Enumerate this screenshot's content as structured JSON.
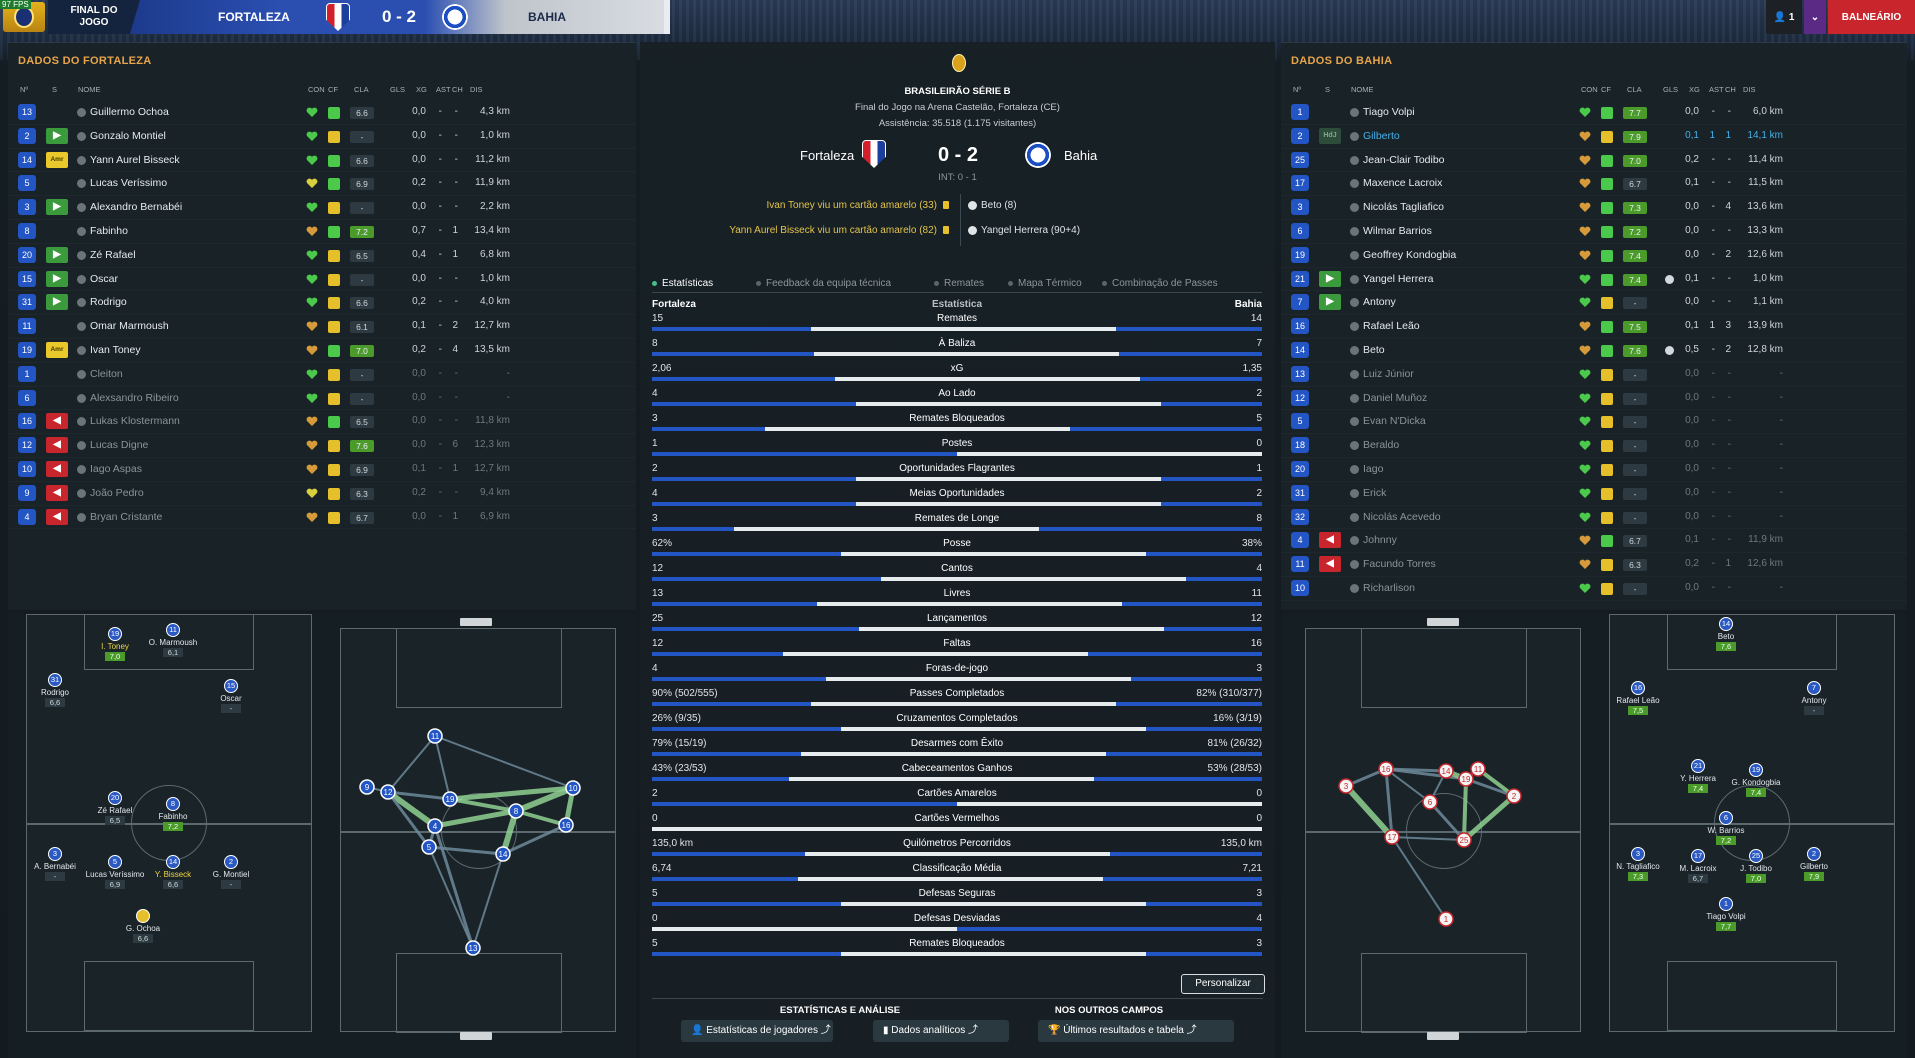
{
  "topbar": {
    "fps": "97 FPS",
    "stage": "FINAL DO\nJOGO",
    "home_team": "FORTALEZA",
    "score": "0 - 2",
    "away_team": "BAHIA",
    "notif_count": "1",
    "balneario": "BALNEÁRIO"
  },
  "home_panel": {
    "title": "DADOS DO FORTALEZA",
    "columns": [
      "Nº",
      "S",
      "NOME",
      "CON",
      "CF",
      "CLA",
      "GLS",
      "XG",
      "AST",
      "CH",
      "DIS"
    ],
    "players": [
      {
        "n": "13",
        "s": "",
        "name": "Guillermo Ochoa",
        "con": "g",
        "cf": "up",
        "cla": "6.6",
        "clag": false,
        "gls": "",
        "xg": "0,0",
        "ast": "-",
        "ch": "-",
        "dis": "4,3 km",
        "dim": false
      },
      {
        "n": "2",
        "s": "in",
        "name": "Gonzalo Montiel",
        "con": "g",
        "cf": "flat",
        "cla": "-",
        "clag": false,
        "gls": "",
        "xg": "0,0",
        "ast": "-",
        "ch": "-",
        "dis": "1,0 km",
        "dim": false
      },
      {
        "n": "14",
        "s": "amr",
        "name": "Yann Aurel Bisseck",
        "con": "g",
        "cf": "up",
        "cla": "6.6",
        "clag": false,
        "gls": "",
        "xg": "0,0",
        "ast": "-",
        "ch": "-",
        "dis": "11,2 km",
        "dim": false
      },
      {
        "n": "5",
        "s": "",
        "name": "Lucas Veríssimo",
        "con": "y",
        "cf": "up",
        "cla": "6.9",
        "clag": false,
        "gls": "",
        "xg": "0,2",
        "ast": "-",
        "ch": "-",
        "dis": "11,9 km",
        "dim": false
      },
      {
        "n": "3",
        "s": "in",
        "name": "Alexandro Bernabéi",
        "con": "g",
        "cf": "flat",
        "cla": "-",
        "clag": false,
        "gls": "",
        "xg": "0,0",
        "ast": "-",
        "ch": "-",
        "dis": "2,2 km",
        "dim": false
      },
      {
        "n": "8",
        "s": "",
        "name": "Fabinho",
        "con": "o",
        "cf": "up",
        "cla": "7.2",
        "clag": true,
        "gls": "",
        "xg": "0,7",
        "ast": "-",
        "ch": "1",
        "dis": "13,4 km",
        "dim": false
      },
      {
        "n": "20",
        "s": "in",
        "name": "Zé Rafael",
        "con": "g",
        "cf": "flat",
        "cla": "6.5",
        "clag": false,
        "gls": "",
        "xg": "0,4",
        "ast": "-",
        "ch": "1",
        "dis": "6,8 km",
        "dim": false
      },
      {
        "n": "15",
        "s": "in",
        "name": "Oscar",
        "con": "g",
        "cf": "flat",
        "cla": "-",
        "clag": false,
        "gls": "",
        "xg": "0,0",
        "ast": "-",
        "ch": "-",
        "dis": "1,0 km",
        "dim": false
      },
      {
        "n": "31",
        "s": "in",
        "name": "Rodrigo",
        "con": "g",
        "cf": "flat",
        "cla": "6.6",
        "clag": false,
        "gls": "",
        "xg": "0,2",
        "ast": "-",
        "ch": "-",
        "dis": "4,0 km",
        "dim": false
      },
      {
        "n": "11",
        "s": "",
        "name": "Omar Marmoush",
        "con": "o",
        "cf": "flat",
        "cla": "6.1",
        "clag": false,
        "gls": "",
        "xg": "0,1",
        "ast": "-",
        "ch": "2",
        "dis": "12,7 km",
        "dim": false
      },
      {
        "n": "19",
        "s": "amr",
        "name": "Ivan Toney",
        "con": "o",
        "cf": "up",
        "cla": "7.0",
        "clag": true,
        "gls": "",
        "xg": "0,2",
        "ast": "-",
        "ch": "4",
        "dis": "13,5 km",
        "dim": false
      },
      {
        "n": "1",
        "s": "",
        "name": "Cleiton",
        "con": "g",
        "cf": "flat",
        "cla": "-",
        "clag": false,
        "gls": "",
        "xg": "0,0",
        "ast": "-",
        "ch": "-",
        "dis": "-",
        "dim": true
      },
      {
        "n": "6",
        "s": "",
        "name": "Alexsandro Ribeiro",
        "con": "g",
        "cf": "flat",
        "cla": "-",
        "clag": false,
        "gls": "",
        "xg": "0,0",
        "ast": "-",
        "ch": "-",
        "dis": "-",
        "dim": true
      },
      {
        "n": "16",
        "s": "out",
        "name": "Lukas Klostermann",
        "con": "o",
        "cf": "up",
        "cla": "6.5",
        "clag": false,
        "gls": "",
        "xg": "0,0",
        "ast": "-",
        "ch": "-",
        "dis": "11,8 km",
        "dim": true
      },
      {
        "n": "12",
        "s": "out",
        "name": "Lucas Digne",
        "con": "o",
        "cf": "flat",
        "cla": "7.6",
        "clag": true,
        "gls": "",
        "xg": "0,0",
        "ast": "-",
        "ch": "6",
        "dis": "12,3 km",
        "dim": true
      },
      {
        "n": "10",
        "s": "out",
        "name": "Iago Aspas",
        "con": "o",
        "cf": "flat",
        "cla": "6.9",
        "clag": false,
        "gls": "",
        "xg": "0,1",
        "ast": "-",
        "ch": "1",
        "dis": "12,7 km",
        "dim": true
      },
      {
        "n": "9",
        "s": "out",
        "name": "João Pedro",
        "con": "y",
        "cf": "flat",
        "cla": "6.3",
        "clag": false,
        "gls": "",
        "xg": "0,2",
        "ast": "-",
        "ch": "-",
        "dis": "9,4 km",
        "dim": true
      },
      {
        "n": "4",
        "s": "out",
        "name": "Bryan Cristante",
        "con": "o",
        "cf": "flat",
        "cla": "6.7",
        "clag": false,
        "gls": "",
        "xg": "0,0",
        "ast": "-",
        "ch": "1",
        "dis": "6,9 km",
        "dim": true
      }
    ]
  },
  "away_panel": {
    "title": "DADOS DO BAHIA",
    "columns": [
      "Nº",
      "S",
      "NOME",
      "CON",
      "CF",
      "CLA",
      "GLS",
      "XG",
      "AST",
      "CH",
      "DIS"
    ],
    "players": [
      {
        "n": "1",
        "s": "",
        "name": "Tiago Volpi",
        "con": "g",
        "cf": "up",
        "cla": "7.7",
        "clag": true,
        "gls": "",
        "xg": "0,0",
        "ast": "-",
        "ch": "-",
        "dis": "6,0 km",
        "dim": false,
        "hl": false
      },
      {
        "n": "2",
        "s": "hd",
        "name": "Gilberto",
        "con": "o",
        "cf": "flat",
        "cla": "7.9",
        "clag": true,
        "gls": "",
        "xg": "0,1",
        "ast": "1",
        "ch": "1",
        "dis": "14,1 km",
        "dim": false,
        "hl": true
      },
      {
        "n": "25",
        "s": "",
        "name": "Jean-Clair Todibo",
        "con": "o",
        "cf": "up",
        "cla": "7.0",
        "clag": true,
        "gls": "",
        "xg": "0,2",
        "ast": "-",
        "ch": "-",
        "dis": "11,4 km",
        "dim": false,
        "hl": false
      },
      {
        "n": "17",
        "s": "",
        "name": "Maxence Lacroix",
        "con": "o",
        "cf": "up",
        "cla": "6.7",
        "clag": false,
        "gls": "",
        "xg": "0,1",
        "ast": "-",
        "ch": "-",
        "dis": "11,5 km",
        "dim": false,
        "hl": false
      },
      {
        "n": "3",
        "s": "",
        "name": "Nicolás Tagliafico",
        "con": "o",
        "cf": "up",
        "cla": "7.3",
        "clag": true,
        "gls": "",
        "xg": "0,0",
        "ast": "-",
        "ch": "4",
        "dis": "13,6 km",
        "dim": false,
        "hl": false
      },
      {
        "n": "6",
        "s": "",
        "name": "Wilmar Barrios",
        "con": "o",
        "cf": "up",
        "cla": "7.2",
        "clag": true,
        "gls": "",
        "xg": "0,0",
        "ast": "-",
        "ch": "-",
        "dis": "13,3 km",
        "dim": false,
        "hl": false
      },
      {
        "n": "19",
        "s": "",
        "name": "Geoffrey Kondogbia",
        "con": "o",
        "cf": "up",
        "cla": "7.4",
        "clag": true,
        "gls": "",
        "xg": "0,0",
        "ast": "-",
        "ch": "2",
        "dis": "12,6 km",
        "dim": false,
        "hl": false
      },
      {
        "n": "21",
        "s": "in",
        "name": "Yangel Herrera",
        "con": "g",
        "cf": "up",
        "cla": "7.4",
        "clag": true,
        "gls": "ball",
        "xg": "0,1",
        "ast": "-",
        "ch": "-",
        "dis": "1,0 km",
        "dim": false,
        "hl": false
      },
      {
        "n": "7",
        "s": "in",
        "name": "Antony",
        "con": "g",
        "cf": "flat",
        "cla": "-",
        "clag": false,
        "gls": "",
        "xg": "0,0",
        "ast": "-",
        "ch": "-",
        "dis": "1,1 km",
        "dim": false,
        "hl": false
      },
      {
        "n": "16",
        "s": "",
        "name": "Rafael Leão",
        "con": "o",
        "cf": "up",
        "cla": "7.5",
        "clag": true,
        "gls": "",
        "xg": "0,1",
        "ast": "1",
        "ch": "3",
        "dis": "13,9 km",
        "dim": false,
        "hl": false
      },
      {
        "n": "14",
        "s": "",
        "name": "Beto",
        "con": "o",
        "cf": "up",
        "cla": "7.6",
        "clag": true,
        "gls": "ball",
        "xg": "0,5",
        "ast": "-",
        "ch": "2",
        "dis": "12,8 km",
        "dim": false,
        "hl": false
      },
      {
        "n": "13",
        "s": "",
        "name": "Luiz Júnior",
        "con": "g",
        "cf": "flat",
        "cla": "-",
        "clag": false,
        "gls": "",
        "xg": "0,0",
        "ast": "-",
        "ch": "-",
        "dis": "-",
        "dim": true,
        "hl": false
      },
      {
        "n": "12",
        "s": "",
        "name": "Daniel Muñoz",
        "con": "g",
        "cf": "flat",
        "cla": "-",
        "clag": false,
        "gls": "",
        "xg": "0,0",
        "ast": "-",
        "ch": "-",
        "dis": "-",
        "dim": true,
        "hl": false
      },
      {
        "n": "5",
        "s": "",
        "name": "Evan N'Dicka",
        "con": "g",
        "cf": "flat",
        "cla": "-",
        "clag": false,
        "gls": "",
        "xg": "0,0",
        "ast": "-",
        "ch": "-",
        "dis": "-",
        "dim": true,
        "hl": false
      },
      {
        "n": "18",
        "s": "",
        "name": "Beraldo",
        "con": "g",
        "cf": "flat",
        "cla": "-",
        "clag": false,
        "gls": "",
        "xg": "0,0",
        "ast": "-",
        "ch": "-",
        "dis": "-",
        "dim": true,
        "hl": false
      },
      {
        "n": "20",
        "s": "",
        "name": "Iago",
        "con": "g",
        "cf": "flat",
        "cla": "-",
        "clag": false,
        "gls": "",
        "xg": "0,0",
        "ast": "-",
        "ch": "-",
        "dis": "-",
        "dim": true,
        "hl": false
      },
      {
        "n": "31",
        "s": "",
        "name": "Erick",
        "con": "g",
        "cf": "flat",
        "cla": "-",
        "clag": false,
        "gls": "",
        "xg": "0,0",
        "ast": "-",
        "ch": "-",
        "dis": "-",
        "dim": true,
        "hl": false
      },
      {
        "n": "32",
        "s": "",
        "name": "Nicolás Acevedo",
        "con": "g",
        "cf": "flat",
        "cla": "-",
        "clag": false,
        "gls": "",
        "xg": "0,0",
        "ast": "-",
        "ch": "-",
        "dis": "-",
        "dim": true,
        "hl": false
      },
      {
        "n": "4",
        "s": "out",
        "name": "Johnny",
        "con": "o",
        "cf": "up",
        "cla": "6.7",
        "clag": false,
        "gls": "",
        "xg": "0,1",
        "ast": "-",
        "ch": "-",
        "dis": "11,9 km",
        "dim": true,
        "hl": false
      },
      {
        "n": "11",
        "s": "out",
        "name": "Facundo Torres",
        "con": "o",
        "cf": "flat",
        "cla": "6.3",
        "clag": false,
        "gls": "",
        "xg": "0,2",
        "ast": "-",
        "ch": "1",
        "dis": "12,6 km",
        "dim": true,
        "hl": false
      },
      {
        "n": "10",
        "s": "",
        "name": "Richarlison",
        "con": "g",
        "cf": "flat",
        "cla": "-",
        "clag": false,
        "gls": "",
        "xg": "0,0",
        "ast": "-",
        "ch": "-",
        "dis": "-",
        "dim": true,
        "hl": false
      }
    ]
  },
  "match": {
    "competition": "BRASILEIRÃO SÉRIE B",
    "venue": "Final do Jogo na Arena Castelão, Fortaleza (CE)",
    "attendance": "Assistência: 35.518 (1.175 visitantes)",
    "home": "Fortaleza",
    "score": "0 - 2",
    "away": "Bahia",
    "interval": "INT: 0 - 1",
    "home_events": [
      "Ivan Toney viu um cartão amarelo (33)",
      "Yann Aurel Bisseck viu um cartão amarelo (82)"
    ],
    "away_events": [
      "Beto (8)",
      "Yangel Herrera (90+4)"
    ]
  },
  "tabs": [
    "Estatísticas",
    "Feedback da equipa técnica",
    "Remates",
    "Mapa Térmico",
    "Combinação de Passes"
  ],
  "stats_header": {
    "home": "Fortaleza",
    "label": "Estatística",
    "away": "Bahia"
  },
  "stats": [
    {
      "h": "15",
      "label": "Remates",
      "a": "14",
      "hp": 52
    },
    {
      "h": "8",
      "label": "À Baliza",
      "a": "7",
      "hp": 53
    },
    {
      "h": "2,06",
      "label": "xG",
      "a": "1,35",
      "hp": 60
    },
    {
      "h": "4",
      "label": "Ao Lado",
      "a": "2",
      "hp": 67
    },
    {
      "h": "3",
      "label": "Remates Bloqueados",
      "a": "5",
      "hp": 37
    },
    {
      "h": "1",
      "label": "Postes",
      "a": "0",
      "hp": 100
    },
    {
      "h": "2",
      "label": "Oportunidades Flagrantes",
      "a": "1",
      "hp": 67
    },
    {
      "h": "4",
      "label": "Meias Oportunidades",
      "a": "2",
      "hp": 67
    },
    {
      "h": "3",
      "label": "Remates de Longe",
      "a": "8",
      "hp": 27
    },
    {
      "h": "62%",
      "label": "Posse",
      "a": "38%",
      "hp": 62
    },
    {
      "h": "12",
      "label": "Cantos",
      "a": "4",
      "hp": 75
    },
    {
      "h": "13",
      "label": "Livres",
      "a": "11",
      "hp": 54
    },
    {
      "h": "25",
      "label": "Lançamentos",
      "a": "12",
      "hp": 68
    },
    {
      "h": "12",
      "label": "Faltas",
      "a": "16",
      "hp": 43
    },
    {
      "h": "4",
      "label": "Foras-de-jogo",
      "a": "3",
      "hp": 57
    },
    {
      "h": "90% (502/555)",
      "label": "Passes Completados",
      "a": "82% (310/377)",
      "hp": 52
    },
    {
      "h": "26% (9/35)",
      "label": "Cruzamentos Completados",
      "a": "16% (3/19)",
      "hp": 62
    },
    {
      "h": "79% (15/19)",
      "label": "Desarmes com Êxito",
      "a": "81% (26/32)",
      "hp": 49
    },
    {
      "h": "43% (23/53)",
      "label": "Cabeceamentos Ganhos",
      "a": "53% (28/53)",
      "hp": 45
    },
    {
      "h": "2",
      "label": "Cartões Amarelos",
      "a": "0",
      "hp": 100
    },
    {
      "h": "0",
      "label": "Cartões Vermelhos",
      "a": "0",
      "hp": 100
    },
    {
      "h": "135,0 km",
      "label": "Quilómetros Percorridos",
      "a": "135,0 km",
      "hp": 50
    },
    {
      "h": "6,74",
      "label": "Classificação Média",
      "a": "7,21",
      "hp": 48
    },
    {
      "h": "5",
      "label": "Defesas Seguras",
      "a": "3",
      "hp": 62
    },
    {
      "h": "0",
      "label": "Defesas Desviadas",
      "a": "4",
      "hp": 0
    },
    {
      "h": "5",
      "label": "Remates Bloqueados",
      "a": "3",
      "hp": 62
    }
  ],
  "buttons": {
    "personalizar": "Personalizar",
    "stats_section": "ESTATÍSTICAS E ANÁLISE",
    "others_section": "NOS OUTROS CAMPOS",
    "player_stats": "Estatísticas de jogadores",
    "analytics": "Dados analíticos",
    "results": "Últimos resultados e tabela"
  },
  "home_formation": [
    {
      "n": "19",
      "name": "I. Toney",
      "r": "7,0",
      "g": true,
      "y": true
    },
    {
      "n": "11",
      "name": "O. Marmoush",
      "r": "6,1",
      "g": false,
      "y": false
    },
    {
      "n": "31",
      "name": "Rodrigo",
      "r": "6,6",
      "g": false,
      "y": false
    },
    {
      "n": "15",
      "name": "Oscar",
      "r": "-",
      "g": false,
      "y": false
    },
    {
      "n": "20",
      "name": "Zé Rafael",
      "r": "6,5",
      "g": false,
      "y": false
    },
    {
      "n": "8",
      "name": "Fabinho",
      "r": "7,2",
      "g": true,
      "y": false
    },
    {
      "n": "3",
      "name": "A. Bernabéi",
      "r": "-",
      "g": false,
      "y": false
    },
    {
      "n": "5",
      "name": "Lucas Veríssimo",
      "r": "6,9",
      "g": false,
      "y": false
    },
    {
      "n": "14",
      "name": "Y. Bisseck",
      "r": "6,6",
      "g": false,
      "y": true
    },
    {
      "n": "2",
      "name": "G. Montiel",
      "r": "-",
      "g": false,
      "y": false
    },
    {
      "n": "",
      "name": "G. Ochoa",
      "r": "6,6",
      "g": false,
      "y": false
    }
  ],
  "away_formation": [
    {
      "n": "14",
      "name": "Beto",
      "r": "7,6",
      "g": true
    },
    {
      "n": "16",
      "name": "Rafael Leão",
      "r": "7,5",
      "g": true
    },
    {
      "n": "7",
      "name": "Antony",
      "r": "-",
      "g": false
    },
    {
      "n": "21",
      "name": "Y. Herrera",
      "r": "7,4",
      "g": true
    },
    {
      "n": "19",
      "name": "G. Kondogbia",
      "r": "7,4",
      "g": true
    },
    {
      "n": "6",
      "name": "W. Barrios",
      "r": "7,2",
      "g": true
    },
    {
      "n": "3",
      "name": "N. Tagliafico",
      "r": "7,3",
      "g": true
    },
    {
      "n": "17",
      "name": "M. Lacroix",
      "r": "6,7",
      "g": false
    },
    {
      "n": "25",
      "name": "J. Todibo",
      "r": "7,0",
      "g": true
    },
    {
      "n": "2",
      "name": "Gilberto",
      "r": "7,9",
      "g": true
    },
    {
      "n": "1",
      "name": "Tiago Volpi",
      "r": "7,7",
      "g": true
    }
  ],
  "home_network_nodes": [
    "11",
    "9",
    "12",
    "19",
    "10",
    "4",
    "8",
    "5",
    "14",
    "16",
    "13"
  ],
  "away_network_nodes": [
    "16",
    "14",
    "19",
    "11",
    "3",
    "6",
    "2",
    "17",
    "25",
    "1"
  ],
  "colors": {
    "accent": "#e8a54a",
    "blue": "#2355c4",
    "green": "#4bc94b",
    "yellow": "#e6c02a",
    "red": "#c8262c",
    "balneario": "#c8262c"
  }
}
